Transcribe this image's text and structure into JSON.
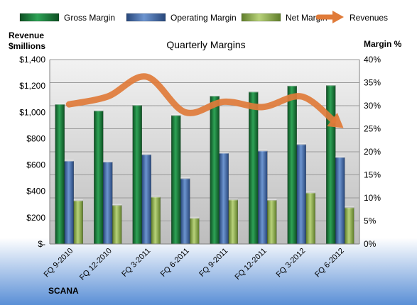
{
  "chart_data": {
    "type": "bar",
    "title": "Quarterly Margins",
    "company": "SCANA",
    "categories": [
      "FQ 9-2010",
      "FQ 12-2010",
      "FQ 3-2011",
      "FQ 6-2011",
      "FQ 9-2011",
      "FQ 12-2011",
      "FQ 3-2012",
      "FQ 6-2012"
    ],
    "series": [
      {
        "name": "Gross Margin",
        "axis": "right",
        "color": "#1f7a3c",
        "values": [
          30.3,
          28.9,
          30.1,
          27.9,
          32.1,
          33.0,
          34.3,
          34.4
        ]
      },
      {
        "name": "Operating Margin",
        "axis": "right",
        "color": "#3f6aa8",
        "values": [
          18.0,
          17.8,
          19.4,
          14.2,
          19.7,
          20.2,
          21.6,
          18.8
        ]
      },
      {
        "name": "Net Margin",
        "axis": "right",
        "color": "#8fb04a",
        "values": [
          9.4,
          8.4,
          10.2,
          5.6,
          9.6,
          9.5,
          11.1,
          7.9
        ]
      }
    ],
    "line_series": {
      "name": "Revenues",
      "axis": "left",
      "color": "#e07b39",
      "values": [
        1060,
        1120,
        1270,
        1000,
        1080,
        1040,
        1120,
        900
      ]
    },
    "left_axis": {
      "title": "Revenue\n$millions",
      "ylim": [
        0,
        1400
      ],
      "ticks": [
        "$-",
        "$200",
        "$400",
        "$600",
        "$800",
        "$1,000",
        "$1,200",
        "$1,400"
      ]
    },
    "right_axis": {
      "title": "Margin %",
      "ylim": [
        0,
        40
      ],
      "ticks": [
        "0%",
        "5%",
        "10%",
        "15%",
        "20%",
        "25%",
        "30%",
        "35%",
        "40%"
      ]
    },
    "legend": "top",
    "grid": true
  }
}
